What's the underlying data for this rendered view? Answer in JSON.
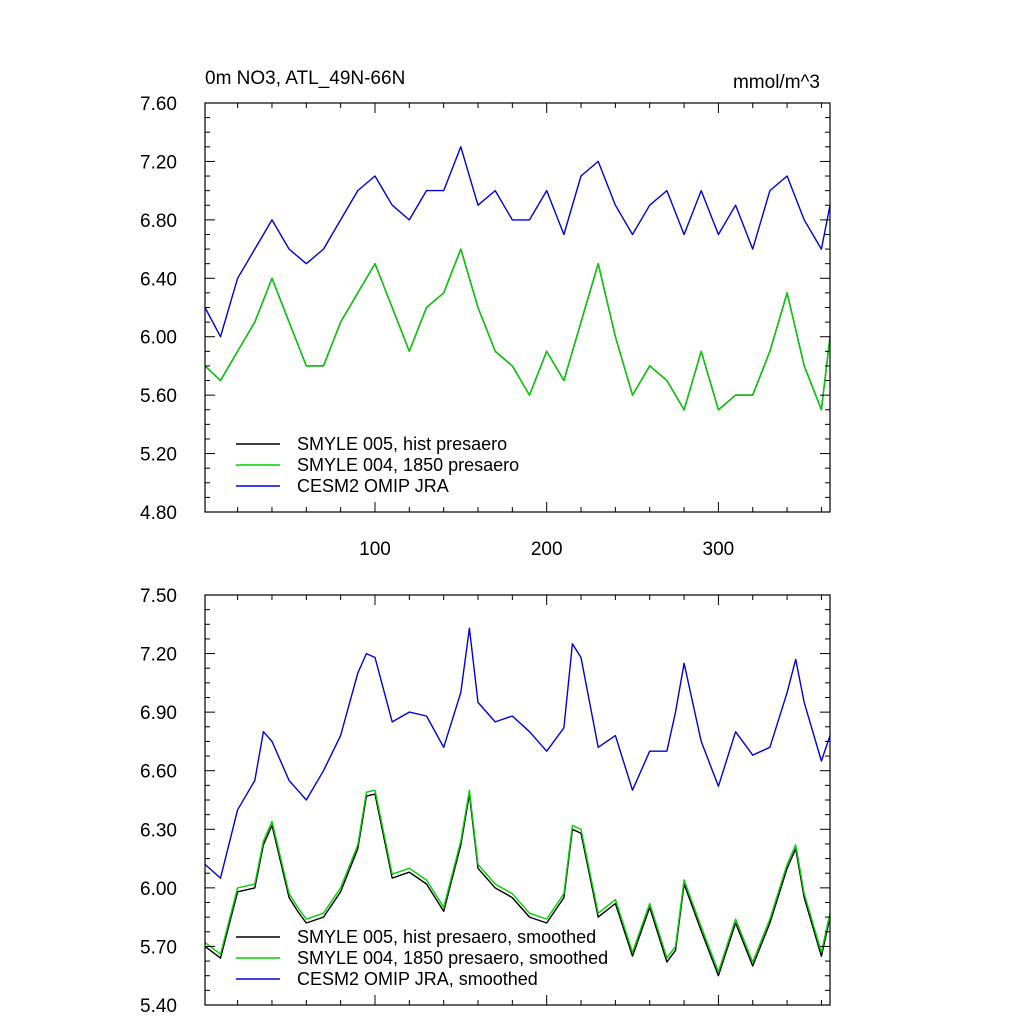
{
  "chart_data": [
    {
      "type": "line",
      "title": "0m NO3, ATL_49N-66N",
      "units": "mmol/m^3",
      "xlim": [
        1,
        365
      ],
      "ylim": [
        4.8,
        7.6
      ],
      "y_ticks": [
        "7.60",
        "7.20",
        "6.80",
        "6.40",
        "6.00",
        "5.60",
        "5.20",
        "4.80"
      ],
      "y_tick_values": [
        7.6,
        7.2,
        6.8,
        6.4,
        6.0,
        5.6,
        5.2,
        4.8
      ],
      "x_ticks": [
        "100",
        "200",
        "300"
      ],
      "x_tick_values": [
        100,
        200,
        300
      ],
      "x": [
        1,
        10,
        20,
        30,
        40,
        50,
        60,
        70,
        80,
        90,
        100,
        110,
        120,
        130,
        140,
        150,
        160,
        170,
        180,
        190,
        200,
        210,
        220,
        230,
        240,
        250,
        260,
        270,
        280,
        290,
        300,
        310,
        320,
        330,
        340,
        350,
        360,
        365
      ],
      "series": [
        {
          "name": "SMYLE 005, hist presaero",
          "color": "#000000",
          "values": [
            5.8,
            5.7,
            5.9,
            6.1,
            6.4,
            6.1,
            5.8,
            5.8,
            6.1,
            6.3,
            6.5,
            6.2,
            5.9,
            6.2,
            6.3,
            6.6,
            6.2,
            5.9,
            5.8,
            5.6,
            5.9,
            5.7,
            6.1,
            6.5,
            6.0,
            5.6,
            5.8,
            5.7,
            5.5,
            5.9,
            5.5,
            5.6,
            5.6,
            5.9,
            6.3,
            5.8,
            5.5,
            6.0
          ]
        },
        {
          "name": "SMYLE 004, 1850 presaero",
          "color": "#00d000",
          "values": [
            5.8,
            5.7,
            5.9,
            6.1,
            6.4,
            6.1,
            5.8,
            5.8,
            6.1,
            6.3,
            6.5,
            6.2,
            5.9,
            6.2,
            6.3,
            6.6,
            6.2,
            5.9,
            5.8,
            5.6,
            5.9,
            5.7,
            6.1,
            6.5,
            6.0,
            5.6,
            5.8,
            5.7,
            5.5,
            5.9,
            5.5,
            5.6,
            5.6,
            5.9,
            6.3,
            5.8,
            5.5,
            6.0
          ]
        },
        {
          "name": "CESM2 OMIP JRA",
          "color": "#0000e0",
          "values": [
            6.2,
            6.0,
            6.4,
            6.6,
            6.8,
            6.6,
            6.5,
            6.6,
            6.8,
            7.0,
            7.1,
            6.9,
            6.8,
            7.0,
            7.0,
            7.3,
            6.9,
            7.0,
            6.8,
            6.8,
            7.0,
            6.7,
            7.1,
            7.2,
            6.9,
            6.7,
            6.9,
            7.0,
            6.7,
            7.0,
            6.7,
            6.9,
            6.6,
            7.0,
            7.1,
            6.8,
            6.6,
            6.9
          ]
        }
      ],
      "legend_position": "bottom-left"
    },
    {
      "type": "line",
      "xlim": [
        1,
        365
      ],
      "ylim": [
        5.4,
        7.5
      ],
      "y_ticks": [
        "7.50",
        "7.20",
        "6.90",
        "6.60",
        "6.30",
        "6.00",
        "5.70",
        "5.40"
      ],
      "y_tick_values": [
        7.5,
        7.2,
        6.9,
        6.6,
        6.3,
        6.0,
        5.7,
        5.4
      ],
      "x_tick_values": [
        100,
        200,
        300
      ],
      "x": [
        1,
        10,
        20,
        30,
        35,
        40,
        50,
        55,
        60,
        70,
        80,
        90,
        95,
        100,
        110,
        120,
        130,
        140,
        150,
        155,
        160,
        170,
        180,
        190,
        200,
        210,
        215,
        220,
        230,
        240,
        250,
        260,
        270,
        275,
        280,
        290,
        300,
        310,
        320,
        330,
        340,
        345,
        350,
        360,
        365
      ],
      "series": [
        {
          "name": "SMYLE 005, hist presaero, smoothed",
          "color": "#000000",
          "values": [
            5.7,
            5.64,
            5.98,
            6.0,
            6.22,
            6.32,
            5.95,
            5.88,
            5.82,
            5.85,
            5.98,
            6.2,
            6.47,
            6.48,
            6.05,
            6.08,
            6.02,
            5.88,
            6.22,
            6.48,
            6.1,
            6.0,
            5.95,
            5.85,
            5.82,
            5.95,
            6.3,
            6.28,
            5.85,
            5.92,
            5.65,
            5.9,
            5.62,
            5.68,
            6.02,
            5.78,
            5.55,
            5.82,
            5.6,
            5.82,
            6.1,
            6.2,
            5.95,
            5.65,
            5.85
          ]
        },
        {
          "name": "SMYLE 004, 1850 presaero, smoothed",
          "color": "#00d000",
          "values": [
            5.72,
            5.66,
            6.0,
            6.02,
            6.24,
            6.34,
            5.97,
            5.9,
            5.84,
            5.87,
            6.0,
            6.22,
            6.49,
            6.5,
            6.07,
            6.1,
            6.04,
            5.9,
            6.24,
            6.5,
            6.12,
            6.02,
            5.97,
            5.87,
            5.84,
            5.97,
            6.32,
            6.3,
            5.87,
            5.94,
            5.67,
            5.92,
            5.64,
            5.7,
            6.04,
            5.8,
            5.57,
            5.84,
            5.62,
            5.84,
            6.12,
            6.22,
            5.97,
            5.67,
            5.87
          ]
        },
        {
          "name": "CESM2 OMIP JRA, smoothed",
          "color": "#0000e0",
          "values": [
            6.12,
            6.05,
            6.4,
            6.55,
            6.8,
            6.75,
            6.55,
            6.5,
            6.45,
            6.6,
            6.78,
            7.1,
            7.2,
            7.18,
            6.85,
            6.9,
            6.88,
            6.72,
            7.0,
            7.33,
            6.95,
            6.85,
            6.88,
            6.8,
            6.7,
            6.82,
            7.25,
            7.18,
            6.72,
            6.78,
            6.5,
            6.7,
            6.7,
            6.9,
            7.15,
            6.75,
            6.52,
            6.8,
            6.68,
            6.72,
            7.0,
            7.17,
            6.95,
            6.65,
            6.78
          ]
        }
      ],
      "legend_position": "bottom-left"
    }
  ]
}
